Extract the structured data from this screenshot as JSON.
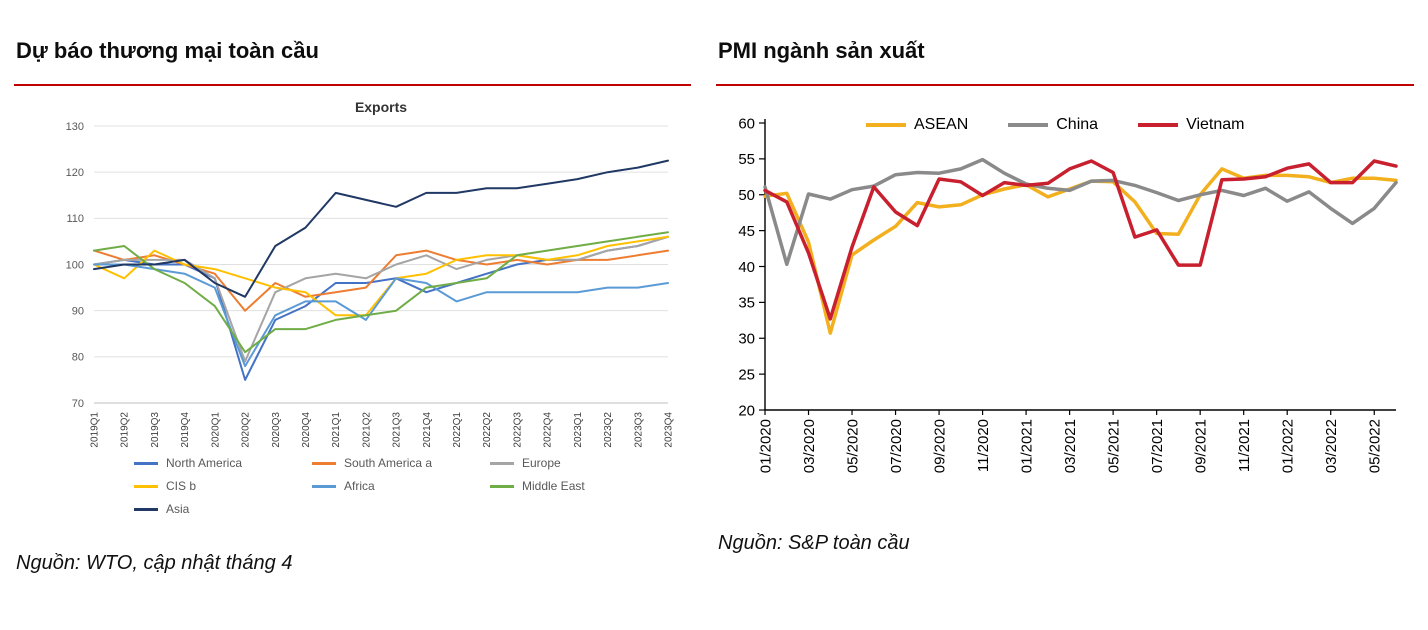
{
  "page": {
    "accent_red": "#C00000",
    "left": {
      "title": "Dự báo thương mại toàn cầu",
      "source": "Nguồn: WTO, cập nhật tháng 4"
    },
    "right": {
      "title": "PMI ngành sản xuất",
      "source": "Nguồn: S&P toàn cầu"
    }
  },
  "chart_data": [
    {
      "type": "line",
      "title": "Exports",
      "xlabel": "",
      "ylabel": "",
      "ylim": [
        70,
        130
      ],
      "ytick_step": 10,
      "grid": true,
      "legend_position": "bottom",
      "xtick_every": 1,
      "categories": [
        "2019Q1",
        "2019Q2",
        "2019Q3",
        "2019Q4",
        "2020Q1",
        "2020Q2",
        "2020Q3",
        "2020Q4",
        "2021Q1",
        "2021Q2",
        "2021Q3",
        "2021Q4",
        "2022Q1",
        "2022Q2",
        "2022Q3",
        "2022Q4",
        "2023Q1",
        "2023Q2",
        "2023Q3",
        "2023Q4"
      ],
      "series": [
        {
          "name": "North America",
          "color": "#4472C4",
          "values": [
            100,
            101,
            100,
            100,
            97,
            75,
            88,
            91,
            96,
            96,
            97,
            94,
            96,
            98,
            100,
            101,
            101,
            103,
            104,
            106
          ]
        },
        {
          "name": "South America a",
          "color": "#ED7D31",
          "values": [
            103,
            101,
            102,
            100,
            98,
            90,
            96,
            93,
            94,
            95,
            102,
            103,
            101,
            100,
            101,
            100,
            101,
            101,
            102,
            103
          ]
        },
        {
          "name": "Europe",
          "color": "#A5A5A5",
          "values": [
            100,
            101,
            101,
            101,
            97,
            79,
            94,
            97,
            98,
            97,
            100,
            102,
            99,
            101,
            102,
            101,
            101,
            103,
            104,
            106
          ]
        },
        {
          "name": "CIS b",
          "color": "#FFC000",
          "values": [
            100,
            97,
            103,
            100,
            99,
            97,
            95,
            94,
            89,
            89,
            97,
            98,
            101,
            102,
            102,
            101,
            102,
            104,
            105,
            106
          ]
        },
        {
          "name": "Africa",
          "color": "#5B9BD5",
          "values": [
            100,
            100,
            99,
            98,
            95,
            78,
            89,
            92,
            92,
            88,
            97,
            96,
            92,
            94,
            94,
            94,
            94,
            95,
            95,
            96
          ]
        },
        {
          "name": "Middle East",
          "color": "#70AD47",
          "values": [
            103,
            104,
            99,
            96,
            91,
            81,
            86,
            86,
            88,
            89,
            90,
            95,
            96,
            97,
            102,
            103,
            104,
            105,
            106,
            107
          ]
        },
        {
          "name": "Asia",
          "color": "#203864",
          "values": [
            99,
            100,
            100,
            101,
            96,
            93,
            104,
            108,
            115.5,
            114,
            112.5,
            115.5,
            115.5,
            116.5,
            116.5,
            117.5,
            118.5,
            120,
            121,
            122.5
          ]
        }
      ]
    },
    {
      "type": "line",
      "title": "",
      "xlabel": "",
      "ylabel": "",
      "ylim": [
        20,
        60
      ],
      "ytick_step": 5,
      "grid": false,
      "legend_position": "top",
      "xtick_every": 2,
      "categories": [
        "01/2020",
        "02/2020",
        "03/2020",
        "04/2020",
        "05/2020",
        "06/2020",
        "07/2020",
        "08/2020",
        "09/2020",
        "10/2020",
        "11/2020",
        "12/2020",
        "01/2021",
        "02/2021",
        "03/2021",
        "04/2021",
        "05/2021",
        "06/2021",
        "07/2021",
        "08/2021",
        "09/2021",
        "10/2021",
        "11/2021",
        "12/2021",
        "01/2022",
        "02/2022",
        "03/2022",
        "04/2022",
        "05/2022",
        "06/2022"
      ],
      "series": [
        {
          "name": "ASEAN",
          "color": "#F2B01E",
          "values": [
            49.8,
            50.2,
            43.4,
            30.7,
            41.6,
            43.7,
            45.6,
            48.9,
            48.3,
            48.6,
            50.0,
            50.8,
            51.4,
            49.7,
            50.8,
            51.9,
            51.8,
            49.0,
            44.6,
            44.5,
            50.0,
            53.6,
            52.3,
            52.7,
            52.7,
            52.5,
            51.7,
            52.3,
            52.3,
            52.0
          ]
        },
        {
          "name": "China",
          "color": "#8A8A8A",
          "values": [
            51.1,
            40.3,
            50.1,
            49.4,
            50.7,
            51.2,
            52.8,
            53.1,
            53.0,
            53.6,
            54.9,
            53.0,
            51.5,
            50.9,
            50.6,
            51.9,
            52.0,
            51.3,
            50.3,
            49.2,
            50.0,
            50.6,
            49.9,
            50.9,
            49.1,
            50.4,
            48.1,
            46.0,
            48.1,
            51.7
          ]
        },
        {
          "name": "Vietnam",
          "color": "#C8202E",
          "values": [
            50.6,
            49.0,
            41.9,
            32.7,
            42.7,
            51.1,
            47.6,
            45.7,
            52.2,
            51.8,
            49.9,
            51.7,
            51.3,
            51.6,
            53.6,
            54.7,
            53.1,
            44.1,
            45.1,
            40.2,
            40.2,
            52.1,
            52.2,
            52.5,
            53.7,
            54.3,
            51.7,
            51.7,
            54.7,
            54.0
          ]
        }
      ]
    }
  ]
}
